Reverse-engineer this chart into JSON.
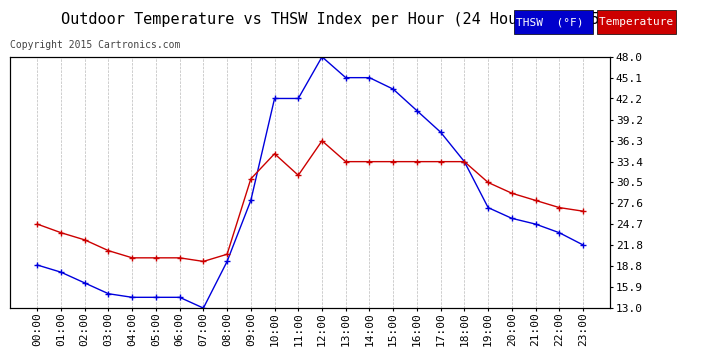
{
  "title": "Outdoor Temperature vs THSW Index per Hour (24 Hours)  20150328",
  "copyright": "Copyright 2015 Cartronics.com",
  "ylabel_right_ticks": [
    13.0,
    15.9,
    18.8,
    21.8,
    24.7,
    27.6,
    30.5,
    33.4,
    36.3,
    39.2,
    42.2,
    45.1,
    48.0
  ],
  "x_labels": [
    "00:00",
    "01:00",
    "02:00",
    "03:00",
    "04:00",
    "05:00",
    "06:00",
    "07:00",
    "08:00",
    "09:00",
    "10:00",
    "11:00",
    "12:00",
    "13:00",
    "14:00",
    "15:00",
    "16:00",
    "17:00",
    "18:00",
    "19:00",
    "20:00",
    "21:00",
    "22:00",
    "23:00"
  ],
  "thsw_color": "#0000dd",
  "temp_color": "#cc0000",
  "background_color": "#ffffff",
  "grid_color": "#aaaaaa",
  "legend_thsw_bg": "#0000cc",
  "legend_temp_bg": "#cc0000",
  "thsw_values": [
    19.0,
    18.0,
    16.5,
    15.0,
    14.5,
    14.5,
    14.5,
    13.0,
    19.5,
    28.0,
    42.2,
    42.2,
    48.0,
    45.1,
    45.1,
    43.5,
    40.5,
    37.5,
    33.4,
    27.0,
    25.5,
    24.7,
    23.5,
    21.8
  ],
  "temp_values": [
    24.7,
    23.5,
    22.5,
    21.0,
    20.0,
    20.0,
    20.0,
    19.5,
    20.5,
    31.0,
    34.5,
    31.5,
    36.3,
    33.4,
    33.4,
    33.4,
    33.4,
    33.4,
    33.4,
    30.5,
    29.0,
    28.0,
    27.0,
    26.5
  ],
  "ymin": 13.0,
  "ymax": 48.0,
  "title_fontsize": 11,
  "copyright_fontsize": 7,
  "tick_fontsize": 8,
  "legend_fontsize": 8
}
